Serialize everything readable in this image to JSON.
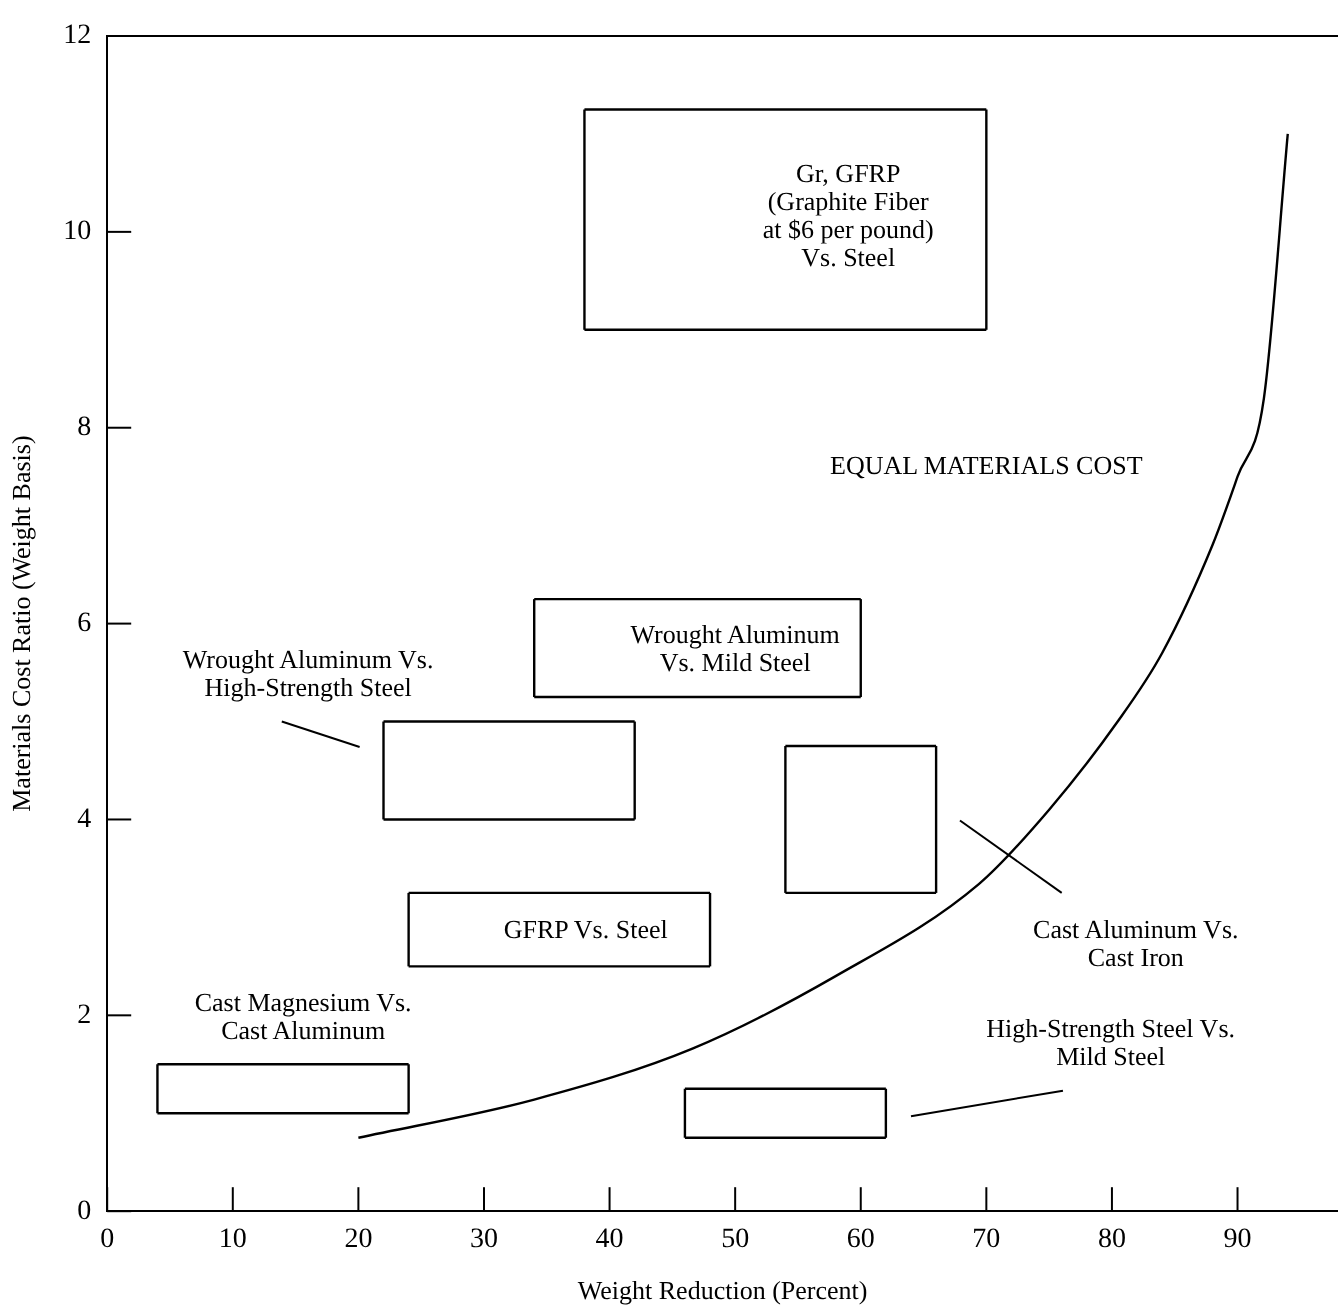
{
  "chart_data": {
    "type": "line",
    "xlabel": "Weight Reduction (Percent)",
    "ylabel": "Materials Cost Ratio (Weight Basis)",
    "xlim": [
      0,
      98
    ],
    "xticks": [
      0,
      10,
      20,
      30,
      40,
      50,
      60,
      70,
      80,
      90
    ],
    "ylim": [
      0,
      12
    ],
    "yticks": [
      0,
      2,
      4,
      6,
      8,
      10,
      12
    ],
    "grid": false,
    "legend": false,
    "marker": "none",
    "line_style": "solid",
    "series": [
      {
        "color": "#000000",
        "x": [
          20,
          34,
          46.6,
          58,
          69.4,
          75,
          80.4,
          84,
          88,
          90,
          92.1,
          94
        ],
        "values": [
          0.75,
          1.14,
          1.66,
          2.4,
          3.34,
          4.1,
          4.99,
          5.7,
          6.8,
          7.5,
          8.3,
          11
        ]
      },
      {
        "color": "#000000",
        "x": [
          38,
          70
        ],
        "values": [
          11.25,
          11.25
        ]
      },
      {
        "color": "#000000",
        "x": [
          38,
          70
        ],
        "values": [
          9,
          9
        ]
      },
      {
        "color": "#000000",
        "x": [
          38,
          38
        ],
        "values": [
          9,
          11.25
        ]
      },
      {
        "color": "#000000",
        "x": [
          70,
          70
        ],
        "values": [
          9,
          11.25
        ]
      },
      {
        "color": "#000000",
        "x": [
          34,
          60
        ],
        "values": [
          6.25,
          6.25
        ]
      },
      {
        "color": "#000000",
        "x": [
          34,
          60
        ],
        "values": [
          5.25,
          5.25
        ]
      },
      {
        "color": "#000000",
        "x": [
          34,
          34
        ],
        "values": [
          5.25,
          6.25
        ]
      },
      {
        "color": "#000000",
        "x": [
          60,
          60
        ],
        "values": [
          5.25,
          6.25
        ]
      },
      {
        "color": "#000000",
        "x": [
          22,
          42
        ],
        "values": [
          5,
          5
        ]
      },
      {
        "color": "#000000",
        "x": [
          22,
          42
        ],
        "values": [
          4,
          4
        ]
      },
      {
        "color": "#000000",
        "x": [
          22,
          22
        ],
        "values": [
          4,
          5
        ]
      },
      {
        "color": "#000000",
        "x": [
          42,
          42
        ],
        "values": [
          4,
          5
        ]
      },
      {
        "color": "#000000",
        "x": [
          54,
          66
        ],
        "values": [
          4.75,
          4.75
        ]
      },
      {
        "color": "#000000",
        "x": [
          54,
          66
        ],
        "values": [
          3.25,
          3.25
        ]
      },
      {
        "color": "#000000",
        "x": [
          54,
          54
        ],
        "values": [
          3.25,
          4.75
        ]
      },
      {
        "color": "#000000",
        "x": [
          66,
          66
        ],
        "values": [
          3.25,
          4.75
        ]
      },
      {
        "color": "#000000",
        "x": [
          24,
          48
        ],
        "values": [
          3.25,
          3.25
        ]
      },
      {
        "color": "#000000",
        "x": [
          24,
          48
        ],
        "values": [
          2.5,
          2.5
        ]
      },
      {
        "color": "#000000",
        "x": [
          24,
          24
        ],
        "values": [
          2.5,
          3.25
        ]
      },
      {
        "color": "#000000",
        "x": [
          48,
          48
        ],
        "values": [
          2.5,
          3.25
        ]
      },
      {
        "color": "#000000",
        "x": [
          4,
          24
        ],
        "values": [
          1.5,
          1.5
        ]
      },
      {
        "color": "#000000",
        "x": [
          4,
          24
        ],
        "values": [
          1,
          1
        ]
      },
      {
        "color": "#000000",
        "x": [
          4,
          4
        ],
        "values": [
          1,
          1.5
        ]
      },
      {
        "color": "#000000",
        "x": [
          24,
          24
        ],
        "values": [
          1,
          1.5
        ]
      },
      {
        "color": "#000000",
        "x": [
          46,
          62
        ],
        "values": [
          1.25,
          1.25
        ]
      },
      {
        "color": "#000000",
        "x": [
          46,
          62
        ],
        "values": [
          0.75,
          0.75
        ]
      },
      {
        "color": "#000000",
        "x": [
          46,
          46
        ],
        "values": [
          0.75,
          1.25
        ]
      },
      {
        "color": "#000000",
        "x": [
          62,
          62
        ],
        "values": [
          0.75,
          1.25
        ]
      }
    ],
    "annotations": [
      {
        "text": "Gr, GFRP\n(Graphite Fiber\nat $6 per pound)\nVs. Steel",
        "x": 70,
        "y": 10
      },
      "EQUAL MATERIALS COST",
      {
        "text": "Wrought Aluminum\nVs. Mild Steel",
        "x": 60,
        "y": 5.75
      },
      {
        "text": "Wrought Aluminum Vs.\nHigh-Strength Steel",
        "x": 22,
        "y": 4.75
      },
      {
        "text": "GFRP Vs. Steel",
        "x": 48,
        "y": 2.875
      },
      "Cast Aluminum Vs.\nCast Iron",
      {
        "text": "Cast Magnesium Vs.\nCast Aluminum",
        "x": 24,
        "y": 1.25
      },
      "High-Strength Steel Vs.\nMild Steel"
    ]
  }
}
